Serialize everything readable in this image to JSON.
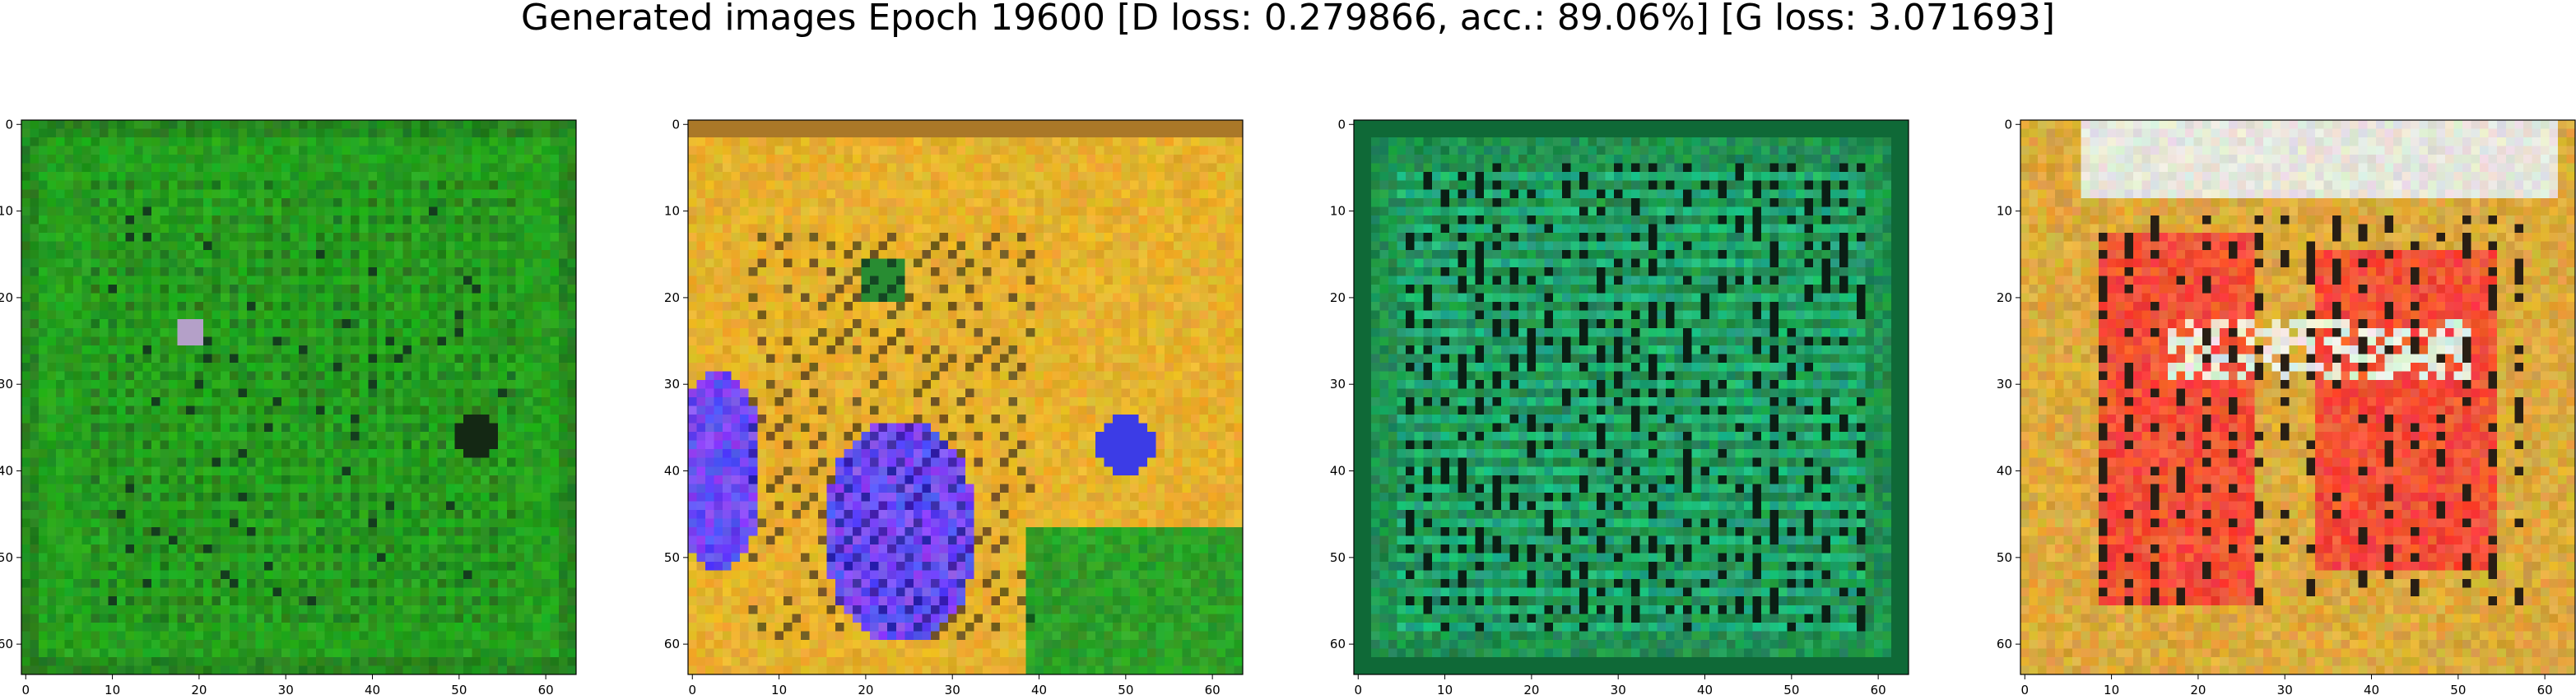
{
  "figure": {
    "title": "Generated images Epoch 19600 [D loss: 0.279866, acc.: 89.06%] [G loss: 3.071693]"
  },
  "chart_data": [
    {
      "type": "heatmap",
      "title": "",
      "xlabel": "",
      "ylabel": "",
      "xlim": [
        0,
        63
      ],
      "ylim": [
        63,
        0
      ],
      "xticks": [
        0,
        10,
        20,
        30,
        40,
        50,
        60
      ],
      "yticks": [
        0,
        10,
        20,
        30,
        40,
        50,
        60
      ],
      "grid": false,
      "description_colors": {
        "dominant": "#1c8c1c",
        "border": "#156e15"
      }
    },
    {
      "type": "heatmap",
      "title": "",
      "xlabel": "",
      "ylabel": "",
      "xlim": [
        0,
        63
      ],
      "ylim": [
        63,
        0
      ],
      "xticks": [
        0,
        10,
        20,
        30,
        40,
        50,
        60
      ],
      "yticks": [
        0,
        10,
        20,
        30,
        40,
        50,
        60
      ],
      "grid": false,
      "description_colors": {
        "dominant": "#d9a21a",
        "blue": "#3a3af0",
        "green": "#1f8f2a"
      }
    },
    {
      "type": "heatmap",
      "title": "",
      "xlabel": "",
      "ylabel": "",
      "xlim": [
        0,
        63
      ],
      "ylim": [
        63,
        0
      ],
      "xticks": [
        0,
        10,
        20,
        30,
        40,
        50,
        60
      ],
      "yticks": [
        0,
        10,
        20,
        30,
        40,
        50,
        60
      ],
      "grid": false,
      "description_colors": {
        "dominant": "#168a4a",
        "stripe": "#1fc27a",
        "dark": "#0a2a18"
      }
    },
    {
      "type": "heatmap",
      "title": "",
      "xlabel": "",
      "ylabel": "",
      "xlim": [
        0,
        63
      ],
      "ylim": [
        63,
        0
      ],
      "xticks": [
        0,
        10,
        20,
        30,
        40,
        50,
        60
      ],
      "yticks": [
        0,
        10,
        20,
        30,
        40,
        50,
        60
      ],
      "grid": false,
      "description_colors": {
        "dominant": "#c89a2a",
        "red": "#f03c28",
        "pale": "#dcdcd2"
      }
    }
  ]
}
